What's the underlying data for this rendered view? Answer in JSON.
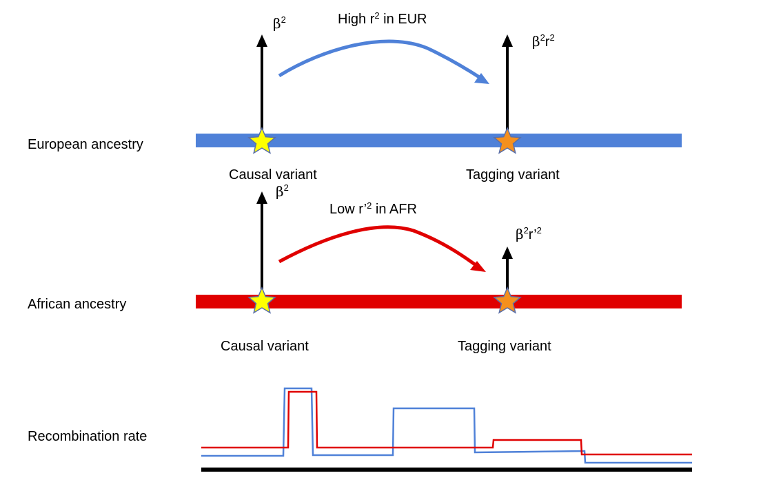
{
  "colors": {
    "eur": "#4F81D8",
    "afr": "#E00000",
    "arrow": "#000000",
    "causal_star": "#FFFF00",
    "tagging_star": "#F5901E",
    "star_stroke": "#5A6FA8"
  },
  "eur": {
    "row_label": "European ancestry",
    "causal_label": "Causal variant",
    "tagging_label": "Tagging variant",
    "causal_effect": {
      "base": "β",
      "sup": "2"
    },
    "tagging_effect": {
      "base1": "β",
      "sup1": "2",
      "base2": "r",
      "sup2": "2"
    },
    "ld_text": "High r",
    "ld_sup": "2",
    "ld_suffix": " in EUR"
  },
  "afr": {
    "row_label": "African ancestry",
    "causal_label": "Causal variant",
    "tagging_label": "Tagging variant",
    "causal_effect": {
      "base": "β",
      "sup": "2"
    },
    "tagging_effect": {
      "base1": "β",
      "sup1": "2",
      "base2": "r’",
      "sup2": "2"
    },
    "ld_text": "Low r’",
    "ld_sup": "2",
    "ld_suffix": " in AFR"
  },
  "recombination": {
    "row_label": "Recombination rate"
  }
}
